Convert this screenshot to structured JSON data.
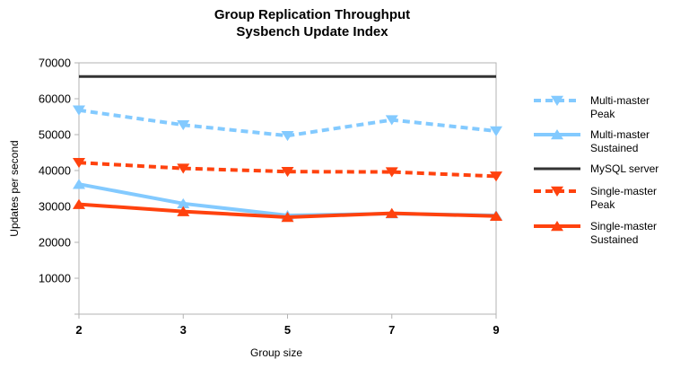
{
  "chart_data": {
    "type": "line",
    "title": "Group Replication Throughput",
    "subtitle": "Sysbench Update Index",
    "xlabel": "Group size",
    "ylabel": "Updates per second",
    "categories": [
      "2",
      "3",
      "5",
      "7",
      "9"
    ],
    "ylim": [
      0,
      70000
    ],
    "yticks": [
      "",
      "10000",
      "20000",
      "30000",
      "40000",
      "50000",
      "60000",
      "70000"
    ],
    "grid": false,
    "legend_position": "right",
    "series": [
      {
        "name": "Multi-master Peak",
        "legend_lines": [
          "Multi-master",
          "Peak"
        ],
        "values": [
          56800,
          52700,
          49700,
          54100,
          51000
        ],
        "color": "#83caff",
        "dashed": true,
        "marker": "triangle-down"
      },
      {
        "name": "Multi-master Sustained",
        "legend_lines": [
          "Multi-master",
          "Sustained"
        ],
        "values": [
          36200,
          30800,
          27500,
          28000,
          27500
        ],
        "color": "#83caff",
        "dashed": false,
        "marker": "triangle-up"
      },
      {
        "name": "MySQL server",
        "legend_lines": [
          "MySQL server"
        ],
        "values": [
          66200,
          66200,
          66200,
          66200,
          66200
        ],
        "color": "#333333",
        "dashed": false,
        "marker": "none"
      },
      {
        "name": "Single-master Peak",
        "legend_lines": [
          "Single-master",
          "Peak"
        ],
        "values": [
          42200,
          40600,
          39700,
          39600,
          38400
        ],
        "color": "#ff420e",
        "dashed": true,
        "marker": "triangle-down"
      },
      {
        "name": "Single-master Sustained",
        "legend_lines": [
          "Single-master",
          "Sustained"
        ],
        "values": [
          30600,
          28600,
          27000,
          28100,
          27300
        ],
        "color": "#ff420e",
        "dashed": false,
        "marker": "triangle-up"
      }
    ]
  }
}
